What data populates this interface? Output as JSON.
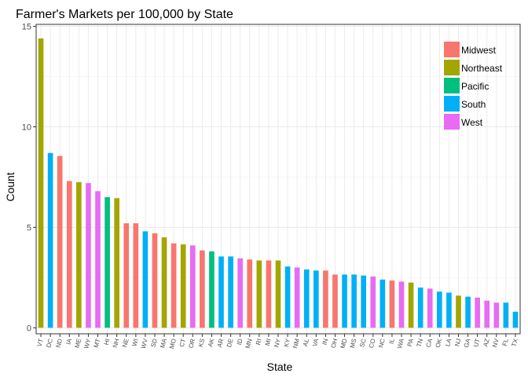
{
  "chart_data": {
    "type": "bar",
    "title": "Farmer's Markets per 100,000 by State",
    "xlabel": "State",
    "ylabel": "Count",
    "ylim": [
      -0.3,
      15.1
    ],
    "yticks": [
      0,
      5,
      10,
      15
    ],
    "grid": true,
    "legend_position": "top-right",
    "legend": [
      {
        "name": "Midwest",
        "color": "#F8766D"
      },
      {
        "name": "Northeast",
        "color": "#A3A500"
      },
      {
        "name": "Pacific",
        "color": "#00BF7D"
      },
      {
        "name": "South",
        "color": "#00B0F6"
      },
      {
        "name": "West",
        "color": "#E76BF3"
      }
    ],
    "bars": [
      {
        "state": "VT",
        "value": 14.4,
        "region": "Northeast"
      },
      {
        "state": "DC",
        "value": 8.7,
        "region": "South"
      },
      {
        "state": "ND",
        "value": 8.55,
        "region": "Midwest"
      },
      {
        "state": "IA",
        "value": 7.3,
        "region": "Midwest"
      },
      {
        "state": "ME",
        "value": 7.25,
        "region": "Northeast"
      },
      {
        "state": "WY",
        "value": 7.2,
        "region": "West"
      },
      {
        "state": "MT",
        "value": 6.8,
        "region": "West"
      },
      {
        "state": "HI",
        "value": 6.5,
        "region": "Pacific"
      },
      {
        "state": "NH",
        "value": 6.45,
        "region": "Northeast"
      },
      {
        "state": "NE",
        "value": 5.2,
        "region": "Midwest"
      },
      {
        "state": "WI",
        "value": 5.2,
        "region": "Midwest"
      },
      {
        "state": "WV",
        "value": 4.8,
        "region": "South"
      },
      {
        "state": "SD",
        "value": 4.7,
        "region": "Midwest"
      },
      {
        "state": "MA",
        "value": 4.5,
        "region": "Northeast"
      },
      {
        "state": "MO",
        "value": 4.2,
        "region": "Midwest"
      },
      {
        "state": "CT",
        "value": 4.15,
        "region": "Northeast"
      },
      {
        "state": "OR",
        "value": 4.1,
        "region": "West"
      },
      {
        "state": "KS",
        "value": 3.85,
        "region": "Midwest"
      },
      {
        "state": "AK",
        "value": 3.8,
        "region": "Pacific"
      },
      {
        "state": "AR",
        "value": 3.55,
        "region": "South"
      },
      {
        "state": "DE",
        "value": 3.55,
        "region": "South"
      },
      {
        "state": "ID",
        "value": 3.45,
        "region": "West"
      },
      {
        "state": "MN",
        "value": 3.4,
        "region": "Midwest"
      },
      {
        "state": "RI",
        "value": 3.35,
        "region": "Northeast"
      },
      {
        "state": "MI",
        "value": 3.35,
        "region": "Midwest"
      },
      {
        "state": "NY",
        "value": 3.35,
        "region": "Northeast"
      },
      {
        "state": "KY",
        "value": 3.05,
        "region": "South"
      },
      {
        "state": "NM",
        "value": 3.0,
        "region": "West"
      },
      {
        "state": "AL",
        "value": 2.9,
        "region": "South"
      },
      {
        "state": "VA",
        "value": 2.85,
        "region": "South"
      },
      {
        "state": "IN",
        "value": 2.85,
        "region": "Midwest"
      },
      {
        "state": "OH",
        "value": 2.65,
        "region": "Midwest"
      },
      {
        "state": "MD",
        "value": 2.65,
        "region": "South"
      },
      {
        "state": "MS",
        "value": 2.65,
        "region": "South"
      },
      {
        "state": "SC",
        "value": 2.6,
        "region": "South"
      },
      {
        "state": "CO",
        "value": 2.55,
        "region": "West"
      },
      {
        "state": "NC",
        "value": 2.4,
        "region": "South"
      },
      {
        "state": "IL",
        "value": 2.35,
        "region": "Midwest"
      },
      {
        "state": "WA",
        "value": 2.3,
        "region": "West"
      },
      {
        "state": "PA",
        "value": 2.25,
        "region": "Northeast"
      },
      {
        "state": "TN",
        "value": 2.0,
        "region": "South"
      },
      {
        "state": "CA",
        "value": 1.95,
        "region": "West"
      },
      {
        "state": "OK",
        "value": 1.8,
        "region": "South"
      },
      {
        "state": "LA",
        "value": 1.75,
        "region": "South"
      },
      {
        "state": "NJ",
        "value": 1.6,
        "region": "Northeast"
      },
      {
        "state": "GA",
        "value": 1.55,
        "region": "South"
      },
      {
        "state": "UT",
        "value": 1.5,
        "region": "West"
      },
      {
        "state": "AZ",
        "value": 1.35,
        "region": "West"
      },
      {
        "state": "NV",
        "value": 1.25,
        "region": "West"
      },
      {
        "state": "FL",
        "value": 1.25,
        "region": "South"
      },
      {
        "state": "TX",
        "value": 0.8,
        "region": "South"
      }
    ]
  }
}
